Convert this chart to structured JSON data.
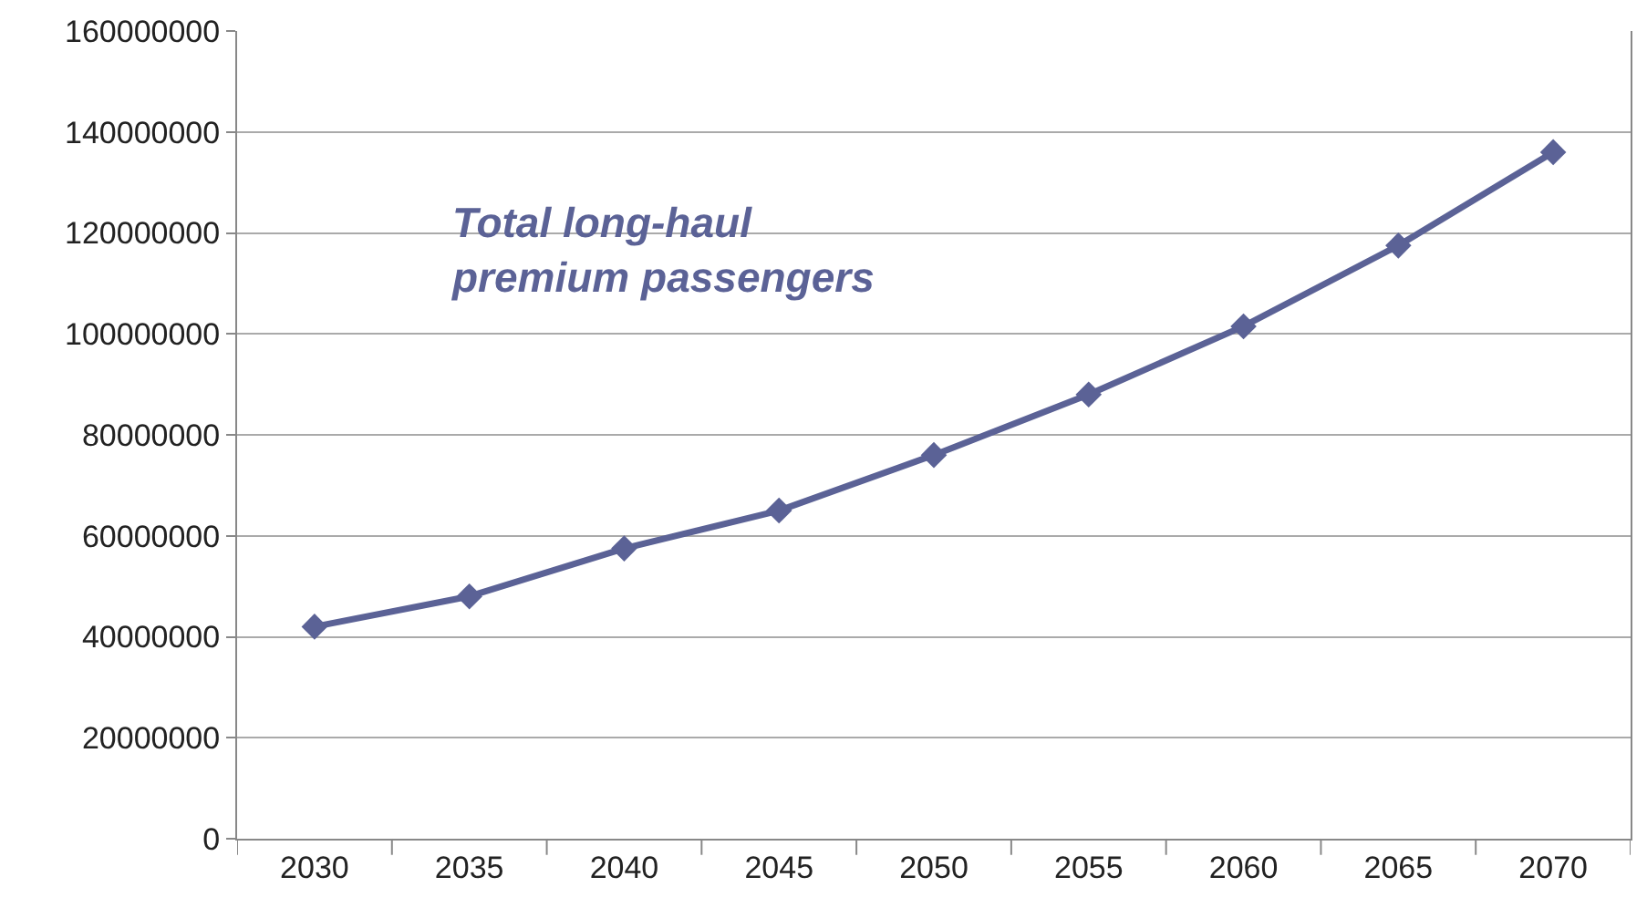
{
  "chart_data": {
    "type": "line",
    "categories": [
      "2030",
      "2035",
      "2040",
      "2045",
      "2050",
      "2055",
      "2060",
      "2065",
      "2070"
    ],
    "series": [
      {
        "color": "#5b6296",
        "values": [
          42000000,
          48000000,
          57500000,
          65000000,
          76000000,
          88000000,
          101500000,
          117500000,
          136000000
        ]
      }
    ],
    "ylim": [
      0,
      160000000
    ],
    "yticks": [
      0,
      20000000,
      40000000,
      60000000,
      80000000,
      100000000,
      120000000,
      140000000,
      160000000
    ],
    "annotations": [
      "Total long-haul\npremium passengers"
    ],
    "grid": "y",
    "legend": false,
    "marker": "diamond",
    "line_style": "solid"
  }
}
